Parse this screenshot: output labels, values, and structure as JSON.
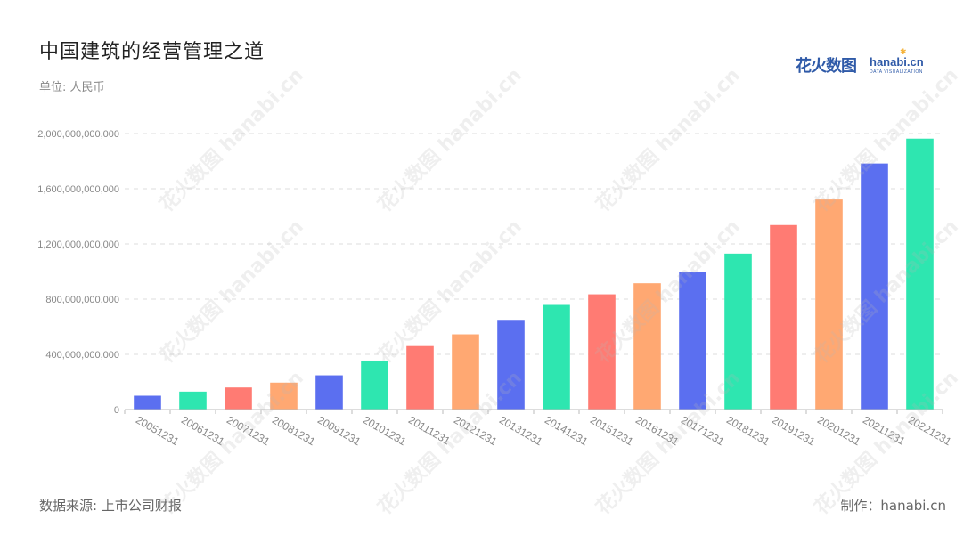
{
  "header": {
    "title": "中国建筑的经营管理之道",
    "unit": "单位: 人民币"
  },
  "logo": {
    "cn": "花火数图",
    "en": "hanabi.cn",
    "sub": "DATA VISUALIZATION"
  },
  "footer": {
    "source": "数据来源: 上市公司财报",
    "credit": "制作：hanabi.cn"
  },
  "colors": {
    "palette": [
      "#5b6ff0",
      "#2ee6b0",
      "#ff7b73",
      "#ffa872"
    ],
    "axis": "#bbbbbb",
    "grid": "#dddddd",
    "tick_text": "#888888"
  },
  "chart_data": {
    "type": "bar",
    "title": "中国建筑的经营管理之道",
    "categories": [
      "20051231",
      "20061231",
      "20071231",
      "20081231",
      "20091231",
      "20101231",
      "20111231",
      "20121231",
      "20131231",
      "20141231",
      "20151231",
      "20161231",
      "20171231",
      "20181231",
      "20191231",
      "20201231",
      "20211231",
      "20221231"
    ],
    "values": [
      100000000000,
      130000000000,
      160000000000,
      195000000000,
      248000000000,
      355000000000,
      460000000000,
      545000000000,
      650000000000,
      758000000000,
      835000000000,
      915000000000,
      998000000000,
      1130000000000,
      1337000000000,
      1522000000000,
      1783000000000,
      1963000000000
    ],
    "yticks": [
      0,
      400000000000,
      800000000000,
      1200000000000,
      1600000000000,
      2000000000000
    ],
    "ytick_labels": [
      "0",
      "400,000,000,000",
      "800,000,000,000",
      "1,200,000,000,000",
      "1,600,000,000,000",
      "2,000,000,000,000"
    ],
    "ylim": [
      0,
      2000000000000
    ],
    "grid": true,
    "legend": "none",
    "xlabel": "",
    "ylabel": ""
  }
}
